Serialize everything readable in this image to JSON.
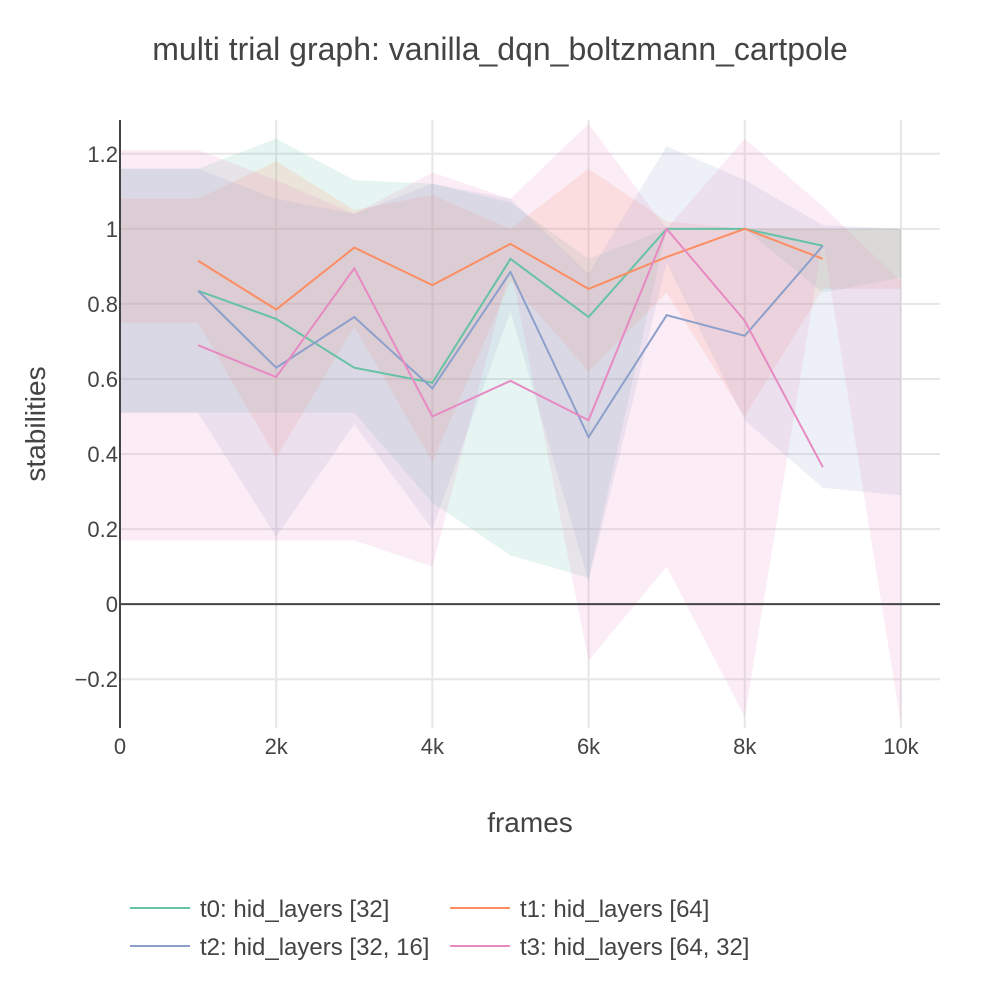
{
  "chart_data": {
    "type": "line",
    "title": "multi trial graph: vanilla_dqn_boltzmann_cartpole",
    "xlabel": "frames",
    "ylabel": "stabilities",
    "xlim": [
      0,
      10500
    ],
    "ylim": [
      -0.33,
      1.29
    ],
    "x_ticks": [
      {
        "value": 0,
        "label": "0"
      },
      {
        "value": 2000,
        "label": "2k"
      },
      {
        "value": 4000,
        "label": "4k"
      },
      {
        "value": 6000,
        "label": "6k"
      },
      {
        "value": 8000,
        "label": "8k"
      },
      {
        "value": 10000,
        "label": "10k"
      }
    ],
    "y_ticks": [
      {
        "value": -0.2,
        "label": "−0.2"
      },
      {
        "value": 0,
        "label": "0"
      },
      {
        "value": 0.2,
        "label": "0.2"
      },
      {
        "value": 0.4,
        "label": "0.4"
      },
      {
        "value": 0.6,
        "label": "0.6"
      },
      {
        "value": 0.8,
        "label": "0.8"
      },
      {
        "value": 1,
        "label": "1"
      },
      {
        "value": 1.2,
        "label": "1.2"
      }
    ],
    "grid": true,
    "legend_position": "bottom",
    "series": [
      {
        "name": "t0: hid_layers [32]",
        "color": "#66c2a5",
        "x": [
          1000,
          2000,
          3000,
          4000,
          5000,
          6000,
          7000,
          8000,
          9000
        ],
        "values": [
          0.835,
          0.76,
          0.63,
          0.59,
          0.92,
          0.765,
          1.0,
          1.0,
          0.955
        ],
        "band_x": [
          0,
          1000,
          2000,
          3000,
          4000,
          5000,
          6000,
          7000,
          8000,
          9000,
          10000
        ],
        "band_upper": [
          1.16,
          1.16,
          1.24,
          1.13,
          1.12,
          1.07,
          0.92,
          1.0,
          1.0,
          1.0,
          1.0
        ],
        "band_lower": [
          0.51,
          0.51,
          0.51,
          0.51,
          0.27,
          0.13,
          0.07,
          1.0,
          1.0,
          0.83,
          0.87
        ]
      },
      {
        "name": "t1: hid_layers [64]",
        "color": "#fc8d62",
        "x": [
          1000,
          2000,
          3000,
          4000,
          5000,
          6000,
          7000,
          8000,
          9000
        ],
        "values": [
          0.915,
          0.785,
          0.95,
          0.85,
          0.96,
          0.84,
          0.925,
          1.0,
          0.92
        ],
        "band_x": [
          0,
          1000,
          2000,
          3000,
          4000,
          5000,
          6000,
          7000,
          8000,
          9000,
          10000
        ],
        "band_upper": [
          1.08,
          1.08,
          1.18,
          1.05,
          1.09,
          1.0,
          1.16,
          1.02,
          1.0,
          1.0,
          1.0
        ],
        "band_lower": [
          0.75,
          0.75,
          0.39,
          0.74,
          0.38,
          0.86,
          0.62,
          0.83,
          0.5,
          0.84,
          0.84
        ]
      },
      {
        "name": "t2: hid_layers [32, 16]",
        "color": "#8da0cb",
        "x": [
          1000,
          2000,
          3000,
          4000,
          5000,
          6000,
          7000,
          8000,
          9000
        ],
        "values": [
          0.835,
          0.63,
          0.765,
          0.575,
          0.885,
          0.445,
          0.77,
          0.715,
          0.955
        ],
        "band_x": [
          0,
          1000,
          2000,
          3000,
          4000,
          5000,
          6000,
          7000,
          8000,
          9000,
          10000
        ],
        "band_upper": [
          1.16,
          1.16,
          1.08,
          1.04,
          1.12,
          1.08,
          0.88,
          1.22,
          1.13,
          1.01,
          1.0
        ],
        "band_lower": [
          0.51,
          0.51,
          0.18,
          0.48,
          0.2,
          0.78,
          0.06,
          0.91,
          0.49,
          0.31,
          0.29
        ]
      },
      {
        "name": "t3: hid_layers [64, 32]",
        "color": "#e78ac3",
        "x": [
          1000,
          2000,
          3000,
          4000,
          5000,
          6000,
          7000,
          8000,
          9000
        ],
        "values": [
          0.69,
          0.605,
          0.895,
          0.5,
          0.595,
          0.49,
          1.0,
          0.755,
          0.365
        ],
        "band_x": [
          0,
          1000,
          2000,
          3000,
          4000,
          5000,
          6000,
          7000,
          8000,
          9000,
          10000
        ],
        "band_upper": [
          1.21,
          1.21,
          1.13,
          1.04,
          1.15,
          1.08,
          1.28,
          1.0,
          1.24,
          1.06,
          0.86
        ],
        "band_lower": [
          0.17,
          0.17,
          0.17,
          0.17,
          0.1,
          0.9,
          -0.15,
          0.1,
          -0.3,
          0.97,
          -0.32
        ]
      }
    ]
  }
}
